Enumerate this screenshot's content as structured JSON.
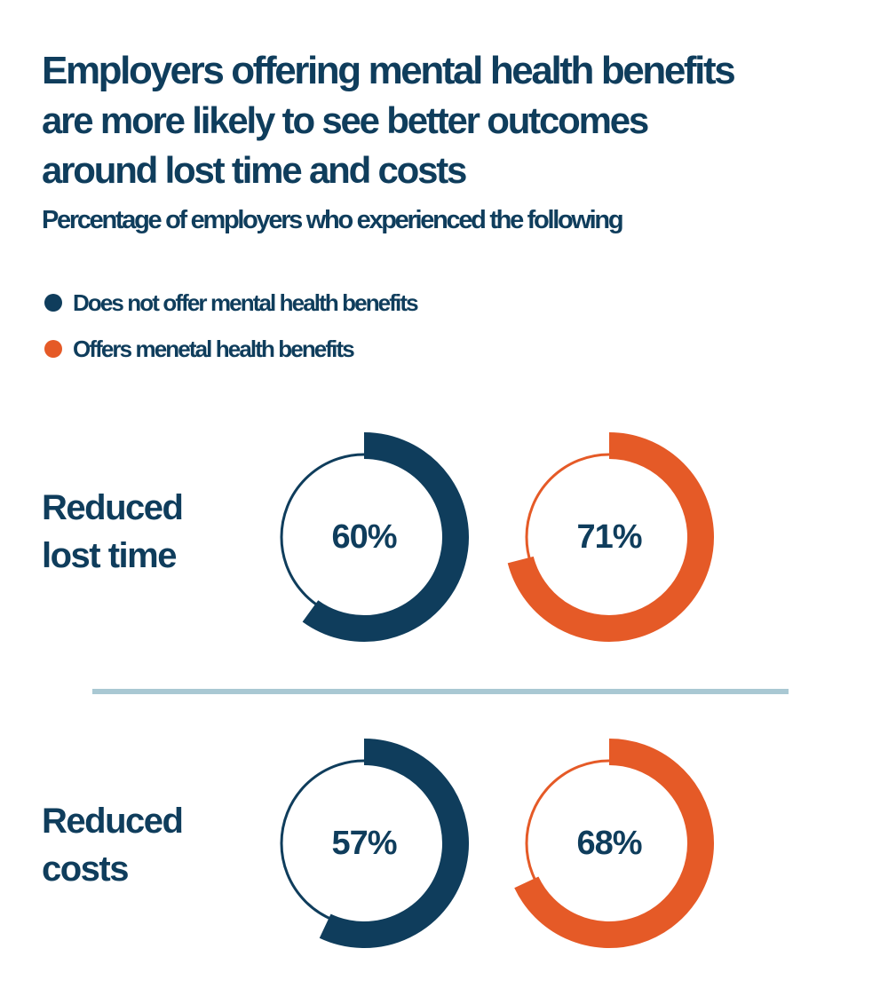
{
  "title": {
    "line1": "Employers offering mental health benefits",
    "line2": "are more likely to see better outcomes",
    "line3": "around lost time and costs"
  },
  "subtitle": "Percentage of employers who experienced the following",
  "legend": [
    {
      "label": "Does not offer mental health benefits",
      "color": "#0f3d5c"
    },
    {
      "label": "Offers menetal health benefits",
      "color": "#e55a27"
    }
  ],
  "colors": {
    "navy": "#0f3d5c",
    "orange": "#e55a27",
    "divider": "#a9c8d3",
    "text": "#0f3d5c"
  },
  "rows": [
    {
      "label_line1": "Reduced",
      "label_line2": "lost time",
      "no_benefits": {
        "value": 60,
        "display": "60%"
      },
      "benefits": {
        "value": 71,
        "display": "71%"
      }
    },
    {
      "label_line1": "Reduced",
      "label_line2": "costs",
      "no_benefits": {
        "value": 57,
        "display": "57%"
      },
      "benefits": {
        "value": 68,
        "display": "68%"
      }
    }
  ],
  "chart_data": {
    "type": "donut",
    "title": "Employers offering mental health benefits are more likely to see better outcomes around lost time and costs",
    "subtitle": "Percentage of employers who experienced the following",
    "categories": [
      "Reduced lost time",
      "Reduced costs"
    ],
    "series": [
      {
        "name": "Does not offer mental health benefits",
        "color": "#0f3d5c",
        "values": [
          60,
          57
        ]
      },
      {
        "name": "Offers menetal health benefits",
        "color": "#e55a27",
        "values": [
          71,
          68
        ]
      }
    ],
    "unit": "%",
    "legend_position": "top-left"
  }
}
